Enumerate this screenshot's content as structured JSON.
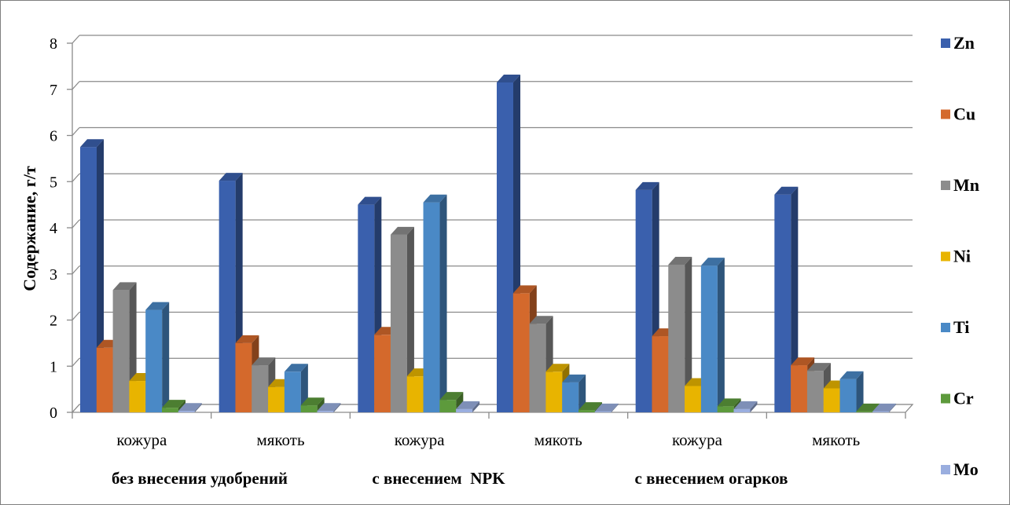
{
  "chart_data": {
    "type": "bar",
    "title": "",
    "ylabel": "Содержание, г/т",
    "xlabel": "",
    "ylim": [
      0,
      8
    ],
    "yticks": [
      "0",
      "1",
      "2",
      "3",
      "4",
      "5",
      "6",
      "7",
      "8"
    ],
    "grid": true,
    "legend_position": "right",
    "categories": [
      "кожура",
      "мякоть",
      "кожура",
      "мякоть",
      "кожура",
      "мякоть"
    ],
    "groups": [
      "без внесения удобрений",
      "с внесением  NPK",
      "с внесением огарков"
    ],
    "series": [
      {
        "name": "Zn",
        "color": "#3a60ad",
        "values": [
          5.75,
          5.02,
          4.5,
          7.15,
          4.82,
          4.72
        ]
      },
      {
        "name": "Cu",
        "color": "#d4692c",
        "values": [
          1.4,
          1.5,
          1.68,
          2.58,
          1.65,
          1.02
        ]
      },
      {
        "name": "Mn",
        "color": "#8c8c8c",
        "values": [
          2.65,
          1.02,
          3.85,
          1.92,
          3.2,
          0.9
        ]
      },
      {
        "name": "Ni",
        "color": "#e8b400",
        "values": [
          0.68,
          0.55,
          0.78,
          0.88,
          0.57,
          0.52
        ]
      },
      {
        "name": "Ti",
        "color": "#4a89c6",
        "values": [
          2.22,
          0.88,
          4.55,
          0.65,
          3.18,
          0.72
        ]
      },
      {
        "name": "Cr",
        "color": "#5d9a3c",
        "values": [
          0.1,
          0.15,
          0.27,
          0.05,
          0.13,
          0.02
        ]
      },
      {
        "name": "Mo",
        "color": "#9aaedf",
        "values": [
          0.03,
          0.03,
          0.07,
          0.02,
          0.07,
          0.02
        ]
      }
    ]
  }
}
